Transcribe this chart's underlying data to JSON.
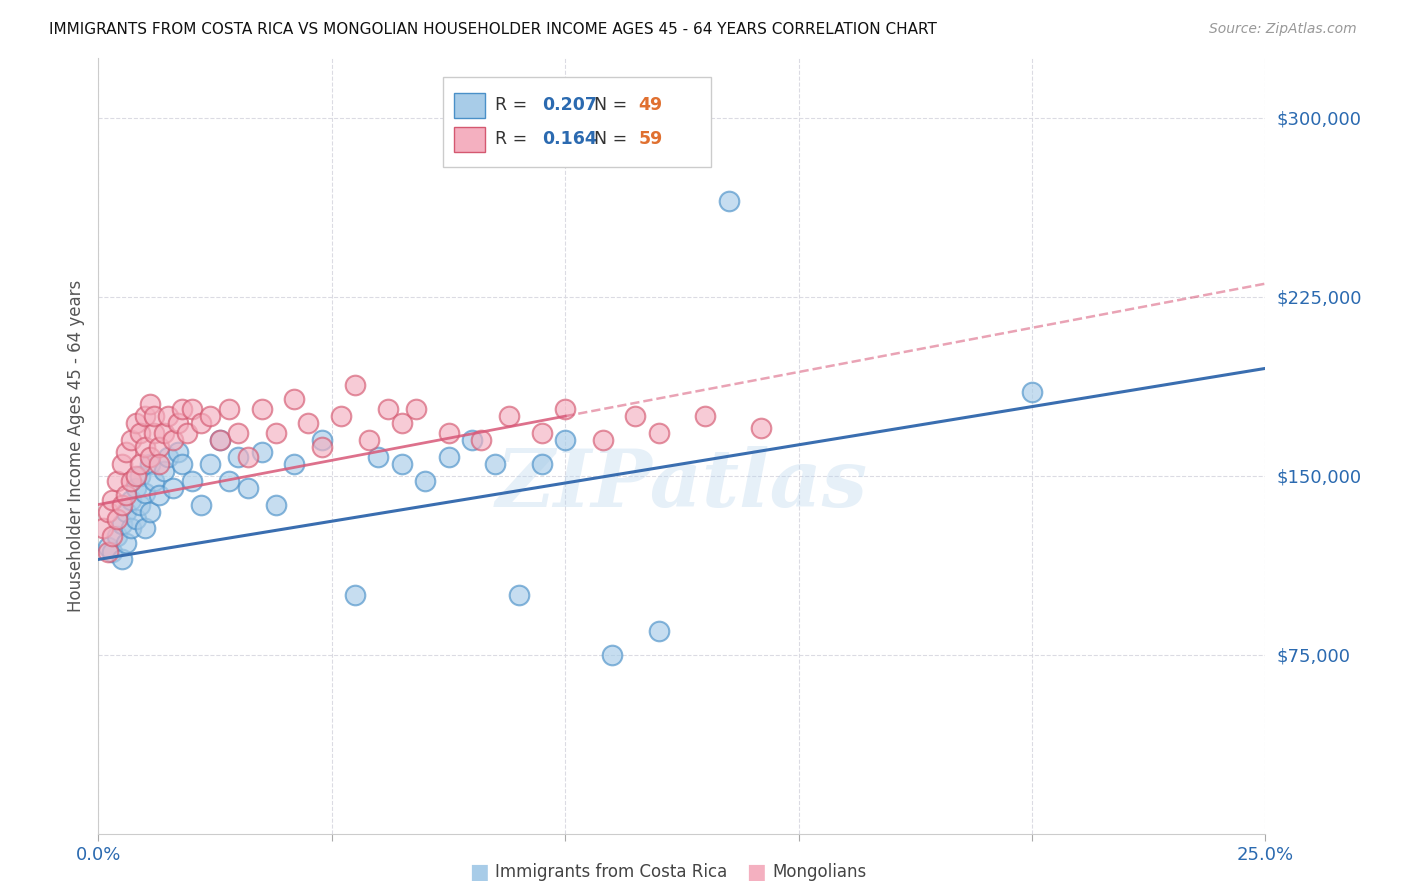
{
  "title": "IMMIGRANTS FROM COSTA RICA VS MONGOLIAN HOUSEHOLDER INCOME AGES 45 - 64 YEARS CORRELATION CHART",
  "source": "Source: ZipAtlas.com",
  "ylabel": "Householder Income Ages 45 - 64 years",
  "xlim": [
    0.0,
    0.25
  ],
  "ylim": [
    0,
    325000
  ],
  "xtick_positions": [
    0.0,
    0.05,
    0.1,
    0.15,
    0.2,
    0.25
  ],
  "xtick_labels": [
    "0.0%",
    "",
    "",
    "",
    "",
    "25.0%"
  ],
  "ytick_vals": [
    75000,
    150000,
    225000,
    300000
  ],
  "ytick_labels": [
    "$75,000",
    "$150,000",
    "$225,000",
    "$300,000"
  ],
  "legend_r1": "0.207",
  "legend_n1": "49",
  "legend_r2": "0.164",
  "legend_n2": "59",
  "color_blue_fill": "#a8cce8",
  "color_blue_edge": "#4a90c8",
  "color_pink_fill": "#f4b0c0",
  "color_pink_edge": "#d45870",
  "color_blue_line": "#3a6eb0",
  "color_pink_line": "#d85878",
  "color_text_blue": "#2b6ab0",
  "color_text_orange": "#e07030",
  "color_grid": "#d8d8e0",
  "color_watermark": "#b8d4ec",
  "watermark": "ZIPatlas",
  "background": "#ffffff",
  "cr_x": [
    0.002,
    0.003,
    0.004,
    0.005,
    0.005,
    0.006,
    0.006,
    0.007,
    0.007,
    0.008,
    0.008,
    0.009,
    0.009,
    0.01,
    0.01,
    0.011,
    0.011,
    0.012,
    0.013,
    0.014,
    0.015,
    0.016,
    0.017,
    0.018,
    0.02,
    0.022,
    0.024,
    0.026,
    0.028,
    0.03,
    0.032,
    0.035,
    0.038,
    0.042,
    0.048,
    0.055,
    0.06,
    0.065,
    0.07,
    0.075,
    0.08,
    0.085,
    0.09,
    0.095,
    0.1,
    0.11,
    0.12,
    0.135,
    0.2
  ],
  "cr_y": [
    120000,
    118000,
    125000,
    115000,
    130000,
    122000,
    135000,
    128000,
    140000,
    132000,
    145000,
    138000,
    150000,
    143000,
    128000,
    155000,
    135000,
    148000,
    142000,
    152000,
    158000,
    145000,
    160000,
    155000,
    148000,
    138000,
    155000,
    165000,
    148000,
    158000,
    145000,
    160000,
    138000,
    155000,
    165000,
    100000,
    158000,
    155000,
    148000,
    158000,
    165000,
    155000,
    100000,
    155000,
    165000,
    75000,
    85000,
    265000,
    185000
  ],
  "mn_x": [
    0.001,
    0.002,
    0.002,
    0.003,
    0.003,
    0.004,
    0.004,
    0.005,
    0.005,
    0.006,
    0.006,
    0.007,
    0.007,
    0.008,
    0.008,
    0.009,
    0.009,
    0.01,
    0.01,
    0.011,
    0.011,
    0.012,
    0.012,
    0.013,
    0.013,
    0.014,
    0.015,
    0.016,
    0.017,
    0.018,
    0.019,
    0.02,
    0.022,
    0.024,
    0.026,
    0.028,
    0.03,
    0.032,
    0.035,
    0.038,
    0.042,
    0.045,
    0.048,
    0.052,
    0.055,
    0.058,
    0.062,
    0.065,
    0.068,
    0.075,
    0.082,
    0.088,
    0.095,
    0.1,
    0.108,
    0.115,
    0.12,
    0.13,
    0.142
  ],
  "mn_y": [
    128000,
    118000,
    135000,
    125000,
    140000,
    132000,
    148000,
    138000,
    155000,
    142000,
    160000,
    148000,
    165000,
    150000,
    172000,
    155000,
    168000,
    162000,
    175000,
    158000,
    180000,
    168000,
    175000,
    162000,
    155000,
    168000,
    175000,
    165000,
    172000,
    178000,
    168000,
    178000,
    172000,
    175000,
    165000,
    178000,
    168000,
    158000,
    178000,
    168000,
    182000,
    172000,
    162000,
    175000,
    188000,
    165000,
    178000,
    172000,
    178000,
    168000,
    165000,
    175000,
    168000,
    178000,
    165000,
    175000,
    168000,
    175000,
    170000
  ]
}
